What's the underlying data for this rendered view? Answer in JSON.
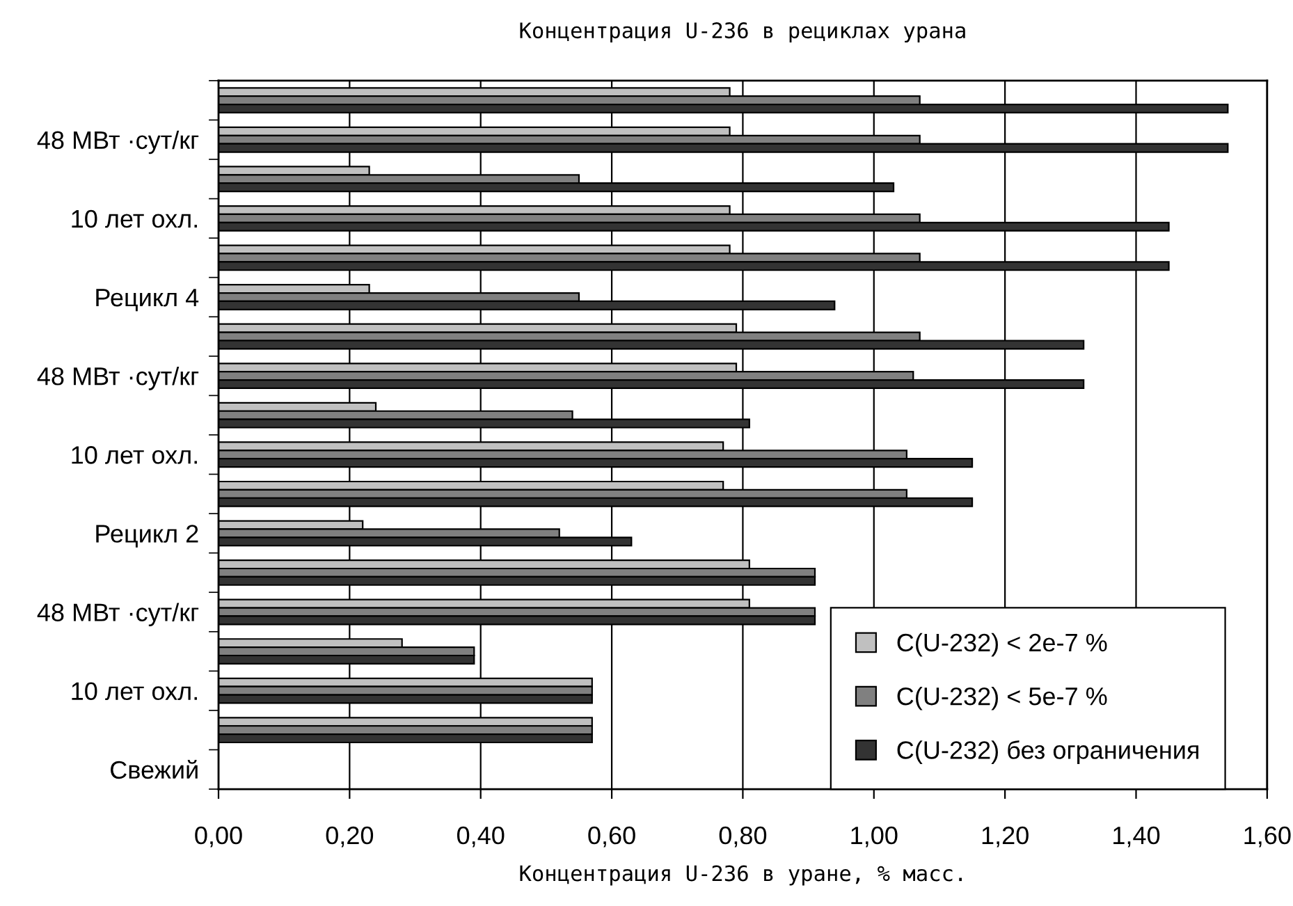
{
  "chart_data": {
    "type": "bar",
    "orientation": "horizontal",
    "title": "Концентрация U-236 в рециклах урана",
    "xlabel": "Концентрация U-236 в уране, % масс.",
    "categories": [
      null,
      "48 МВт ·сут/кг",
      null,
      "10 лет охл.",
      null,
      "Рецикл 4",
      null,
      "48 МВт ·сут/кг",
      null,
      "10 лет охл.",
      null,
      "Рецикл 2",
      null,
      "48 МВт ·сут/кг",
      null,
      "10 лет охл.",
      null,
      "Свежий"
    ],
    "series": [
      {
        "name": "C(U-232) < 2e-7 %",
        "color": "#c0c0c0",
        "values": [
          0.78,
          0.78,
          0.23,
          0.78,
          0.78,
          0.23,
          0.79,
          0.79,
          0.24,
          0.77,
          0.77,
          0.22,
          0.81,
          0.81,
          0.28,
          0.57,
          0.57,
          null
        ]
      },
      {
        "name": "C(U-232) < 5e-7 %",
        "color": "#808080",
        "values": [
          1.07,
          1.07,
          0.55,
          1.07,
          1.07,
          0.55,
          1.07,
          1.06,
          0.54,
          1.05,
          1.05,
          0.52,
          0.91,
          0.91,
          0.39,
          0.57,
          0.57,
          null
        ]
      },
      {
        "name": "C(U-232) без ограничения",
        "color": "#333333",
        "values": [
          1.54,
          1.54,
          1.03,
          1.45,
          1.45,
          0.94,
          1.32,
          1.32,
          0.81,
          1.15,
          1.15,
          0.63,
          0.91,
          0.91,
          0.39,
          0.57,
          0.57,
          null
        ]
      }
    ],
    "xlim": [
      0,
      1.6
    ],
    "xticks": [
      {
        "value": 0,
        "label": "0,00"
      },
      {
        "value": 0.2,
        "label": "0,20"
      },
      {
        "value": 0.4,
        "label": "0,40"
      },
      {
        "value": 0.6,
        "label": "0,60"
      },
      {
        "value": 0.8,
        "label": "0,80"
      },
      {
        "value": 1.0,
        "label": "1,00"
      },
      {
        "value": 1.2,
        "label": "1,20"
      },
      {
        "value": 1.4,
        "label": "1,40"
      },
      {
        "value": 1.6,
        "label": "1,60"
      }
    ],
    "grid": "x",
    "legend": "bottom right"
  }
}
